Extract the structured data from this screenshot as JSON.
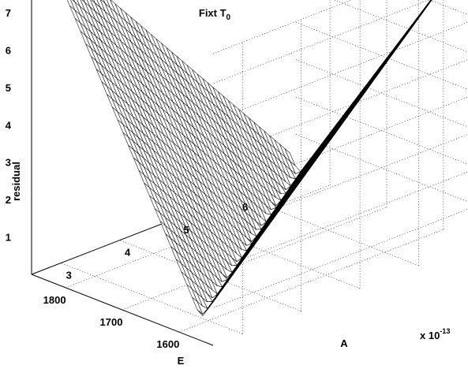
{
  "chart_data": {
    "type": "surface",
    "title": "Fixt T",
    "title_subscript": "0",
    "xlabel": "E",
    "ylabel": "A",
    "zlabel": "residual",
    "x_ticks": [
      "1600",
      "1700",
      "1800"
    ],
    "y_ticks": [
      "3",
      "4",
      "5",
      "6"
    ],
    "z_ticks": [
      "1",
      "2",
      "3",
      "4",
      "5",
      "6",
      "7"
    ],
    "y_multiplier": "x 10",
    "y_multiplier_exp": "-13",
    "xlim": [
      1540,
      1860
    ],
    "ylim": [
      2.5,
      7
    ],
    "zlim": [
      0,
      7.8
    ],
    "grid": true,
    "surface": {
      "E_range": [
        1550,
        1850
      ],
      "A_range": [
        2.6,
        6.8
      ],
      "corner_values": {
        "E1550_A2.6": 7.8,
        "E1550_A6.8": 6.0,
        "E1850_A2.6": 1.2,
        "E1850_A6.8": 7.8
      },
      "min_residual": 0.2
    }
  }
}
